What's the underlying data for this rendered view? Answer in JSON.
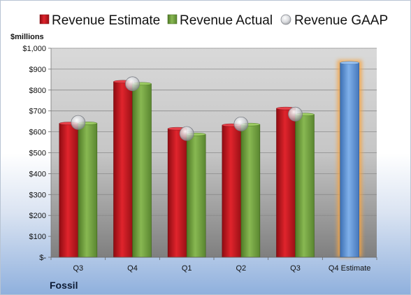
{
  "company": "Fossil",
  "colors": {
    "estimate": "#c0141c",
    "actual": "#6b9a3a",
    "gaap_marker": "#c7c9cc",
    "forecast": "#5b8fd0",
    "forecast_glow": "#f4a444"
  },
  "chart_data": {
    "type": "bar",
    "ylabel": "$millions",
    "ylim": [
      0,
      1000
    ],
    "yticks": [
      0,
      100,
      200,
      300,
      400,
      500,
      600,
      700,
      800,
      900,
      1000
    ],
    "ytick_labels": [
      "$-",
      "$100",
      "$200",
      "$300",
      "$400",
      "$500",
      "$600",
      "$700",
      "$800",
      "$900",
      "$1,000"
    ],
    "categories": [
      "Q3",
      "Q4",
      "Q1",
      "Q2",
      "Q3",
      "Q4 Estimate"
    ],
    "grid": true,
    "legend_position": "top",
    "series": [
      {
        "name": "Revenue Estimate",
        "kind": "bar",
        "values": [
          640,
          840,
          615,
          632,
          712,
          null
        ]
      },
      {
        "name": "Revenue Actual",
        "kind": "bar",
        "values": [
          641,
          830,
          588,
          635,
          683,
          930
        ]
      },
      {
        "name": "Revenue GAAP",
        "kind": "marker",
        "values": [
          645,
          830,
          592,
          638,
          685,
          null
        ]
      }
    ]
  }
}
